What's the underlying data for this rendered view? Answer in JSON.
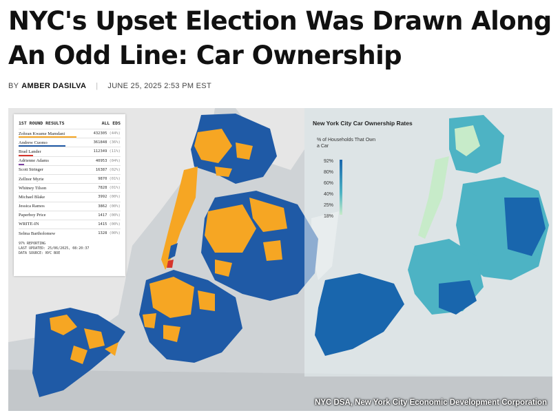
{
  "article": {
    "headline": "NYC's Upset Election Was Drawn Along An Odd Line: Car Ownership",
    "byline_prefix": "BY",
    "author": "AMBER DASILVA",
    "date": "JUNE 25, 2025 2:53 PM EST"
  },
  "election_results": {
    "title": "1ST ROUND RESULTS",
    "scope": "ALL EDS",
    "candidates": [
      {
        "name": "Zohran Kwame Mamdani",
        "votes": "432305",
        "pct": "(44%)",
        "color": "#f6a623"
      },
      {
        "name": "Andrew Cuomo",
        "votes": "361848",
        "pct": "(36%)",
        "color": "#1f5aa6"
      },
      {
        "name": "Brad Lander",
        "votes": "112349",
        "pct": "(11%)",
        "color": "#d6352c"
      },
      {
        "name": "Adrienne Adams",
        "votes": "40953",
        "pct": "(04%)",
        "color": "#7b3fa0"
      },
      {
        "name": "Scott Stringer",
        "votes": "16387",
        "pct": "(02%)",
        "color": ""
      },
      {
        "name": "Zellnor Myrie",
        "votes": "9870",
        "pct": "(01%)",
        "color": ""
      },
      {
        "name": "Whitney Tilson",
        "votes": "7828",
        "pct": "(01%)",
        "color": ""
      },
      {
        "name": "Michael Blake",
        "votes": "3992",
        "pct": "(00%)",
        "color": ""
      },
      {
        "name": "Jessica Ramos",
        "votes": "3862",
        "pct": "(00%)",
        "color": ""
      },
      {
        "name": "Paperboy Price",
        "votes": "1417",
        "pct": "(00%)",
        "color": ""
      },
      {
        "name": "WRITE-IN",
        "votes": "1415",
        "pct": "(00%)",
        "color": ""
      },
      {
        "name": "Selma Bartholomew",
        "votes": "1328",
        "pct": "(00%)",
        "color": ""
      }
    ],
    "reporting": "97% REPORTING",
    "last_updated": "LAST UPDATED: 25/06/2025, 08:20:37",
    "source": "DATA SOURCE: NYC BOE"
  },
  "election_map": {
    "colors": {
      "mamdani": "#f6a623",
      "cuomo": "#1f5aa6",
      "lander": "#d6352c",
      "water": "#cfd3d6",
      "land": "#e7e7e7"
    }
  },
  "ownership_map": {
    "title": "New York City Car Ownership Rates",
    "subtitle": "% of Households That Own a Car",
    "legend": [
      "92%",
      "80%",
      "60%",
      "40%",
      "25%",
      "18%"
    ],
    "colors": {
      "high": "#1966ad",
      "mid": "#4db3c4",
      "low": "#c7ebc9"
    }
  },
  "credit": "NYC DSA, New York City Economic Development Corporation"
}
